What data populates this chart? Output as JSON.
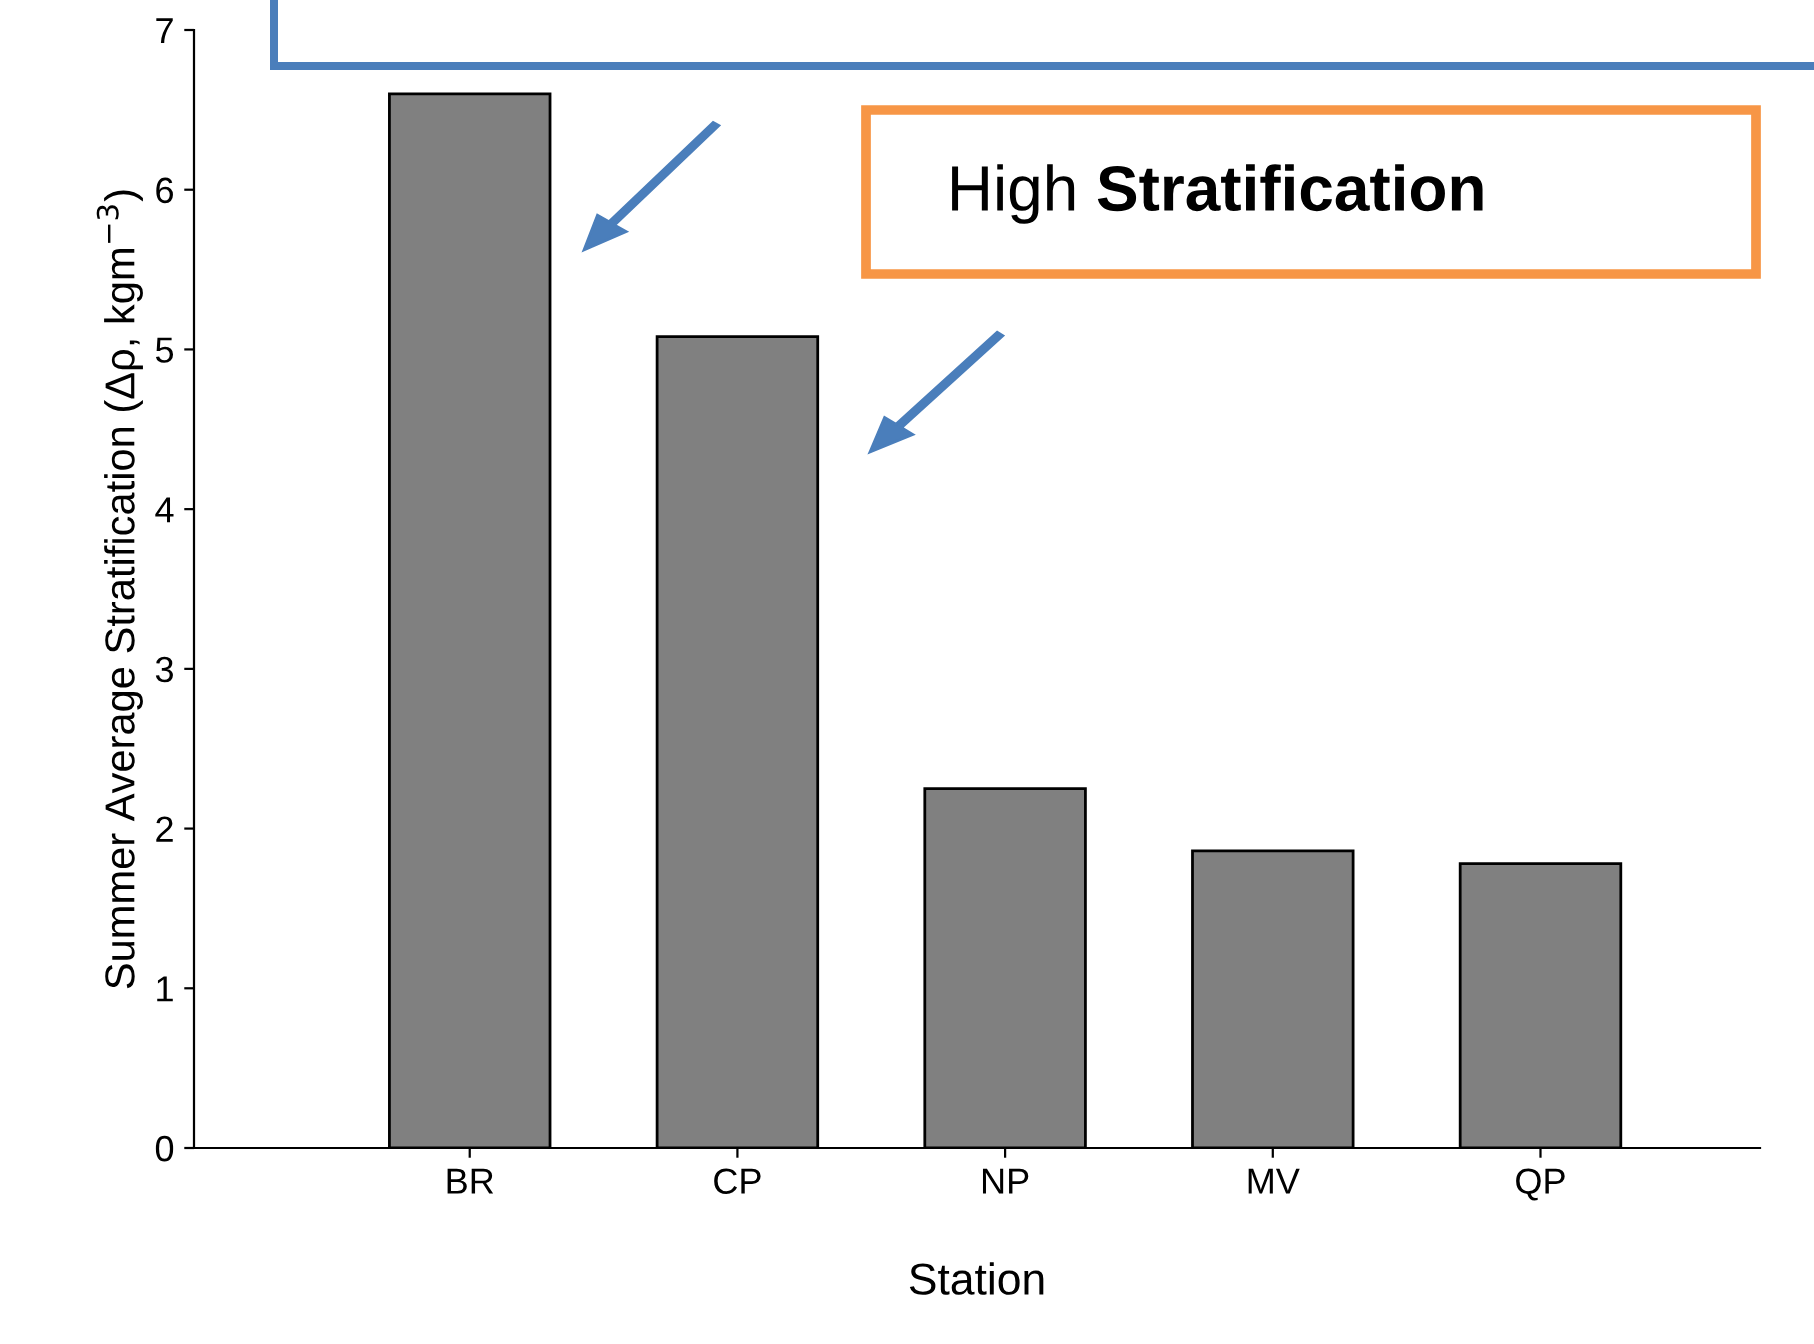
{
  "chart_data": {
    "type": "bar",
    "categories": [
      "BR",
      "CP",
      "NP",
      "MV",
      "QP"
    ],
    "values": [
      6.6,
      5.08,
      2.25,
      1.86,
      1.78
    ],
    "color": "#808080",
    "xlabel": "Station",
    "ylabel": "Summer Average Stratification (Δρ, kgm$^{−3}$)",
    "ylim": [
      0,
      7
    ],
    "yticks": [
      0,
      1,
      2,
      3,
      4,
      5,
      6,
      7
    ],
    "grid": false,
    "annotations": [
      "High Stratification"
    ]
  }
}
